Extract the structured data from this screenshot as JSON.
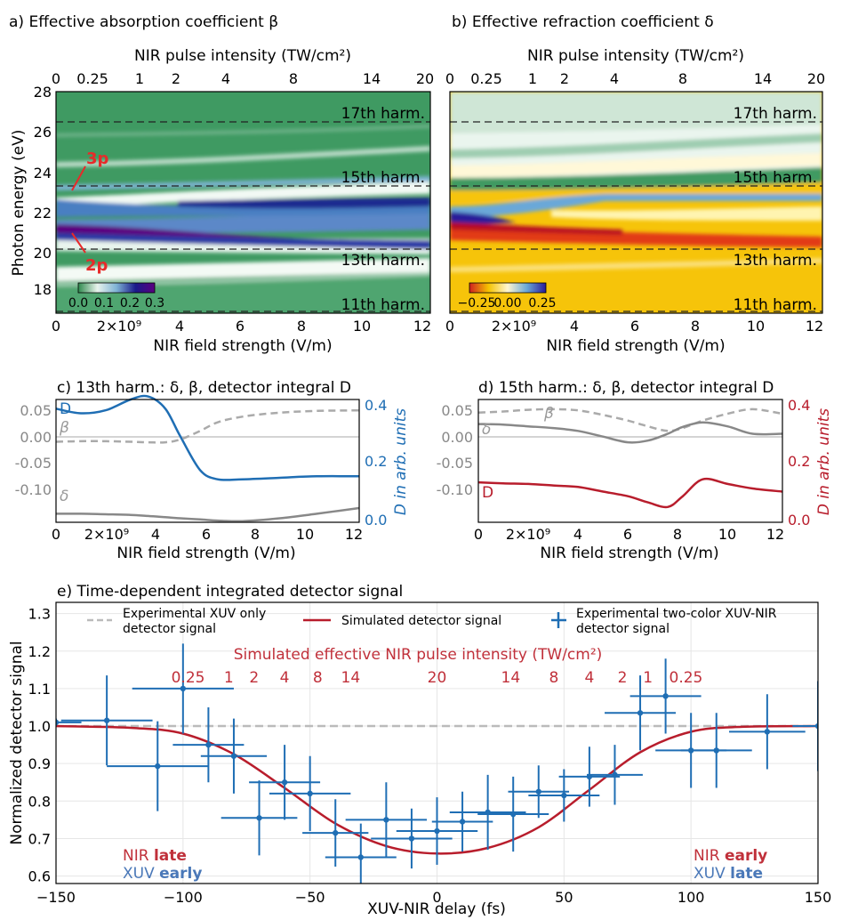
{
  "panels": {
    "a": {
      "title": "a) Effective absorption coefficient β",
      "top_label": "NIR pulse intensity (TW/cm²)",
      "top_ticks": [
        "0",
        "0.25",
        "1",
        "2",
        "4",
        "8",
        "14",
        "20"
      ],
      "ylabel": "Photon energy (eV)",
      "yticks": [
        "18",
        "20",
        "22",
        "24",
        "26",
        "28"
      ],
      "xlabel": "NIR field strength (V/m)",
      "xticks": [
        "0",
        "2×10⁹",
        "4",
        "6",
        "8",
        "10",
        "12"
      ],
      "harmonics": [
        "17th harm.",
        "15th harm.",
        "13th harm.",
        "11th harm."
      ],
      "annot_3p": "3p",
      "annot_2p": "2p",
      "colorbar_ticks": [
        "0.0",
        "0.1",
        "0.2",
        "0.3"
      ],
      "colors": {
        "low": "#2f8a4e",
        "mid": "#7fb3d5",
        "high": "#5b0080"
      }
    },
    "b": {
      "title": "b) Effective refraction coefficient δ",
      "top_label": "NIR pulse intensity (TW/cm²)",
      "top_ticks": [
        "0",
        "0.25",
        "1",
        "2",
        "4",
        "8",
        "14",
        "20"
      ],
      "xlabel": "NIR field strength (V/m)",
      "xticks": [
        "0",
        "2×10⁹",
        "4",
        "6",
        "8",
        "10",
        "12"
      ],
      "harmonics": [
        "17th harm.",
        "15th harm.",
        "13th harm.",
        "11th harm."
      ],
      "colorbar_ticks": [
        "−0.25",
        "0.00",
        "0.25"
      ],
      "colors": {
        "neg": "#d02020",
        "zero": "#fff6d0",
        "pos": "#2a1a9a"
      }
    },
    "c": {
      "title": "c)  13th harm.: δ, β, detector integral D",
      "xlabel": "NIR field strength (V/m)",
      "xticks": [
        "0",
        "2×10⁹",
        "4",
        "6",
        "8",
        "10",
        "12"
      ],
      "yticks_left": [
        "0.05",
        "0.00",
        "-0.05",
        "-0.10"
      ],
      "yticks_right": [
        "0.4",
        "0.2",
        "0.0"
      ],
      "right_label": "D in arb. units",
      "label_D": "D",
      "label_beta": "β",
      "label_delta": "δ",
      "color": "#1f6eb4"
    },
    "d": {
      "title": "d)  15th harm.: δ, β, detector integral D",
      "xlabel": "NIR field strength (V/m)",
      "xticks": [
        "0",
        "2×10⁹",
        "4",
        "6",
        "8",
        "10",
        "12"
      ],
      "yticks_left": [
        "0.05",
        "0.00",
        "-0.05",
        "-0.10"
      ],
      "yticks_right": [
        "0.4",
        "0.2",
        "0.0"
      ],
      "right_label": "D in arb. units",
      "label_D": "D",
      "label_beta": "β",
      "label_delta": "δ",
      "color": "#b81d2c"
    },
    "e": {
      "title": "e) Time-dependent integrated detector signal",
      "legend": {
        "xuv_only_1": "Experimental XUV only",
        "xuv_only_2": "detector signal",
        "simulated": "Simulated detector signal",
        "exp_1": "Experimental two-color XUV-NIR",
        "exp_2": "detector signal"
      },
      "intensity_title": "Simulated effective NIR pulse intensity (TW/cm²)",
      "intensity_labels": [
        "0.25",
        "1",
        "2",
        "4",
        "8",
        "14",
        "20",
        "14",
        "8",
        "4",
        "2",
        "1",
        "0.25"
      ],
      "nir_late_a": "NIR ",
      "nir_late_b": "late",
      "xuv_early_a": "XUV ",
      "xuv_early_b": "early",
      "nir_early_a": "NIR ",
      "nir_early_b": "early",
      "xuv_late_a": "XUV ",
      "xuv_late_b": "late",
      "red": "#c0303a",
      "blue": "#4a78b8"
    }
  },
  "chart_data": [
    {
      "type": "heatmap",
      "title": "a) Effective absorption coefficient β",
      "xlabel": "NIR field strength (V/m)",
      "ylabel": "Photon energy (eV)",
      "xlim": [
        0,
        12.3
      ],
      "ylim": [
        17,
        28
      ],
      "harmonic_lines_eV": [
        26.4,
        23.3,
        20.2,
        17.1
      ],
      "colorbar_range": [
        0,
        0.3
      ]
    },
    {
      "type": "heatmap",
      "title": "b) Effective refraction coefficient δ",
      "xlabel": "NIR field strength (V/m)",
      "xlim": [
        0,
        12.3
      ],
      "ylim": [
        17,
        28
      ],
      "harmonic_lines_eV": [
        26.4,
        23.3,
        20.2,
        17.1
      ],
      "colorbar_range": [
        -0.25,
        0.25
      ]
    },
    {
      "type": "line",
      "title": "c)  13th harm.: δ, β, detector integral D",
      "xlabel": "NIR field strength (V/m)",
      "xlim": [
        0,
        12.2
      ],
      "ylim_left": [
        -0.14,
        0.075
      ],
      "ylim_right": [
        0,
        0.4
      ],
      "x": [
        0,
        1,
        2,
        3,
        3.7,
        4.4,
        5,
        5.8,
        6.5,
        7.5,
        9,
        10.5,
        12.2
      ],
      "series": [
        {
          "name": "D",
          "axis": "right",
          "values": [
            0.37,
            0.355,
            0.365,
            0.4,
            0.41,
            0.37,
            0.28,
            0.17,
            0.14,
            0.14,
            0.145,
            0.15,
            0.15
          ]
        },
        {
          "name": "β",
          "axis": "left",
          "values": [
            0.001,
            0.002,
            0.002,
            0.001,
            0.0,
            0.0,
            0.005,
            0.02,
            0.035,
            0.045,
            0.052,
            0.055,
            0.056
          ]
        },
        {
          "name": "δ",
          "axis": "left",
          "values": [
            -0.125,
            -0.125,
            -0.126,
            -0.127,
            -0.129,
            -0.131,
            -0.133,
            -0.135,
            -0.137,
            -0.138,
            -0.133,
            -0.125,
            -0.115
          ]
        }
      ]
    },
    {
      "type": "line",
      "title": "d)  15th harm.: δ, β, detector integral D",
      "xlabel": "NIR field strength (V/m)",
      "xlim": [
        0,
        12.2
      ],
      "ylim_left": [
        -0.14,
        0.075
      ],
      "ylim_right": [
        0,
        0.4
      ],
      "x": [
        0,
        1,
        2,
        3,
        4,
        5,
        6,
        6.8,
        7.6,
        8.2,
        9,
        10,
        11,
        12.2
      ],
      "series": [
        {
          "name": "β",
          "axis": "left",
          "values": [
            0.052,
            0.054,
            0.057,
            0.058,
            0.056,
            0.048,
            0.038,
            0.028,
            0.02,
            0.025,
            0.038,
            0.05,
            0.058,
            0.05
          ]
        },
        {
          "name": "δ",
          "axis": "left",
          "values": [
            0.032,
            0.031,
            0.028,
            0.025,
            0.02,
            0.01,
            0.0,
            0.003,
            0.015,
            0.027,
            0.035,
            0.028,
            0.015,
            0.015
          ]
        },
        {
          "name": "D",
          "axis": "right",
          "values": [
            0.13,
            0.127,
            0.125,
            0.12,
            0.115,
            0.1,
            0.085,
            0.065,
            0.05,
            0.085,
            0.14,
            0.125,
            0.11,
            0.1
          ]
        }
      ]
    },
    {
      "type": "line",
      "title": "e) Time-dependent integrated detector signal",
      "xlabel": "XUV-NIR delay (fs)",
      "ylabel": "Normalized detector signal",
      "xlim": [
        -150,
        150
      ],
      "ylim": [
        0.58,
        1.33
      ],
      "series": [
        {
          "name": "Experimental XUV only detector signal",
          "x": [
            -150,
            150
          ],
          "values": [
            1.0,
            1.0
          ]
        },
        {
          "name": "Simulated detector signal",
          "x": [
            -150,
            -120,
            -100,
            -80,
            -60,
            -40,
            -20,
            0,
            20,
            40,
            60,
            80,
            100,
            120,
            150
          ],
          "values": [
            1.0,
            0.995,
            0.98,
            0.925,
            0.835,
            0.74,
            0.68,
            0.66,
            0.675,
            0.73,
            0.83,
            0.93,
            0.985,
            0.998,
            1.0
          ]
        },
        {
          "name": "Experimental two-color XUV-NIR detector signal",
          "x": [
            -150,
            -130,
            -110,
            -100,
            -90,
            -80,
            -70,
            -60,
            -50,
            -40,
            -30,
            -20,
            -10,
            0,
            10,
            20,
            30,
            40,
            50,
            60,
            70,
            80,
            90,
            100,
            110,
            130,
            150
          ],
          "values": [
            1.01,
            1.015,
            0.893,
            1.1,
            0.95,
            0.92,
            0.755,
            0.85,
            0.82,
            0.715,
            0.65,
            0.75,
            0.7,
            0.72,
            0.745,
            0.77,
            0.765,
            0.825,
            0.815,
            0.865,
            0.87,
            1.035,
            1.08,
            0.935,
            0.935,
            0.985,
            1.0
          ],
          "xerr": [
            10,
            18,
            20,
            20,
            14,
            13,
            15,
            14,
            16,
            13,
            14,
            16,
            16,
            16,
            12,
            15,
            14,
            12,
            14,
            12,
            11,
            14,
            14,
            14,
            14,
            15,
            10
          ],
          "yerr": [
            0.01,
            0.12,
            0.12,
            0.12,
            0.1,
            0.1,
            0.1,
            0.1,
            0.1,
            0.09,
            0.09,
            0.1,
            0.08,
            0.09,
            0.08,
            0.1,
            0.1,
            0.07,
            0.07,
            0.08,
            0.08,
            0.1,
            0.1,
            0.1,
            0.1,
            0.1,
            0.12
          ]
        }
      ],
      "intensity_axis_labels": [
        "0.25",
        "1",
        "2",
        "4",
        "8",
        "14",
        "20",
        "14",
        "8",
        "4",
        "2",
        "1",
        "0.25"
      ]
    }
  ]
}
